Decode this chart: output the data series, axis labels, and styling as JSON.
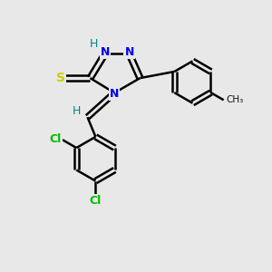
{
  "background_color": "#e8e8e8",
  "atom_colors": {
    "N": "#0000ee",
    "S": "#cccc00",
    "Cl": "#00bb00",
    "C": "#111111",
    "H": "#008888"
  },
  "figsize": [
    3.0,
    3.0
  ],
  "dpi": 100
}
